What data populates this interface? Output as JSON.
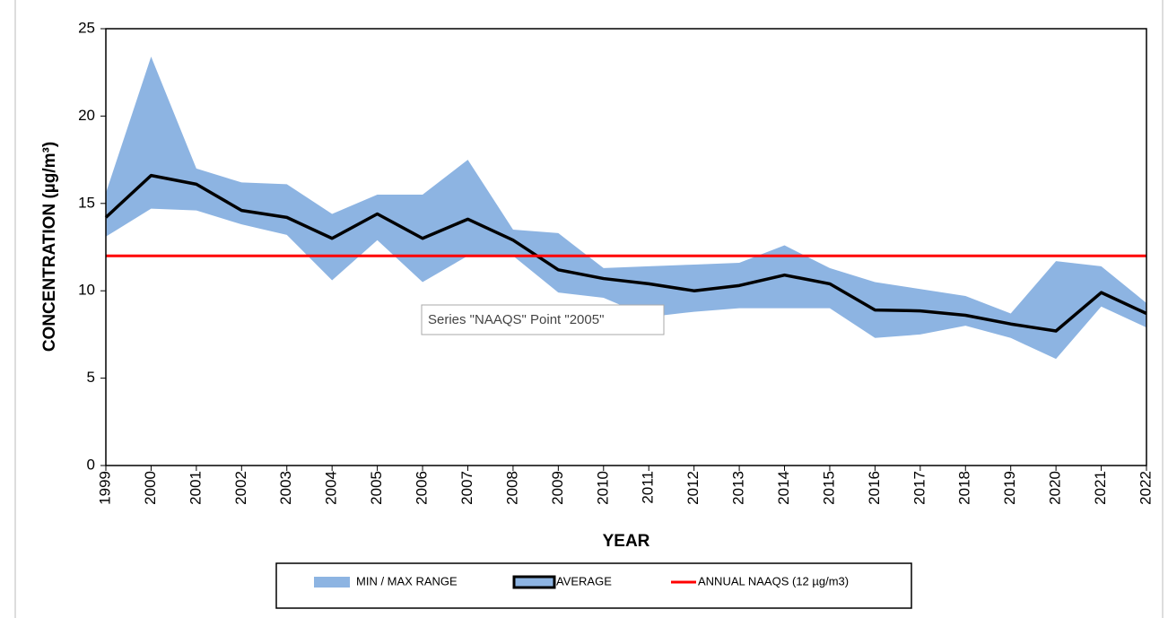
{
  "chart_data": {
    "type": "range-line",
    "x_label": "YEAR",
    "y_label": "CONCENTRATION (µg/m³)",
    "tooltip": "Series \"NAAQS\" Point \"2005\"",
    "categories": [
      "1999",
      "2000",
      "2001",
      "2002",
      "2003",
      "2004",
      "2005",
      "2006",
      "2007",
      "2008",
      "2009",
      "2010",
      "2011",
      "2012",
      "2013",
      "2014",
      "2015",
      "2016",
      "2017",
      "2018",
      "2019",
      "2020",
      "2021",
      "2022"
    ],
    "series": [
      {
        "name": "MIN / MAX RANGE",
        "color": "#8db4e2",
        "min": [
          13.1,
          14.7,
          14.6,
          13.8,
          13.2,
          10.6,
          12.9,
          10.5,
          12.0,
          12.0,
          9.9,
          9.6,
          8.5,
          8.8,
          9.0,
          9.0,
          9.0,
          7.3,
          7.5,
          8.0,
          7.3,
          6.1,
          9.1,
          7.9
        ],
        "max": [
          15.6,
          23.4,
          17.0,
          16.2,
          16.1,
          14.4,
          15.5,
          15.5,
          17.5,
          13.5,
          13.3,
          11.3,
          11.4,
          11.5,
          11.6,
          12.6,
          11.3,
          10.5,
          10.1,
          9.7,
          8.7,
          11.7,
          11.4,
          9.3
        ]
      },
      {
        "name": "AVERAGE",
        "color": "#000000",
        "values": [
          14.2,
          16.6,
          16.1,
          14.6,
          14.2,
          13.0,
          14.4,
          13.0,
          14.1,
          12.9,
          11.2,
          10.7,
          10.4,
          10.0,
          10.3,
          10.9,
          10.4,
          8.9,
          8.85,
          8.6,
          8.1,
          7.7,
          9.9,
          8.7
        ]
      },
      {
        "name": "ANNUAL NAAQS (12 µg/m3)",
        "color": "#ff0000",
        "values": [
          12,
          12,
          12,
          12,
          12,
          12,
          12,
          12,
          12,
          12,
          12,
          12,
          12,
          12,
          12,
          12,
          12,
          12,
          12,
          12,
          12,
          12,
          12,
          12
        ]
      }
    ],
    "ylim": [
      0,
      25
    ],
    "yticks": [
      0,
      5,
      10,
      15,
      20,
      25
    ],
    "grid": false
  }
}
